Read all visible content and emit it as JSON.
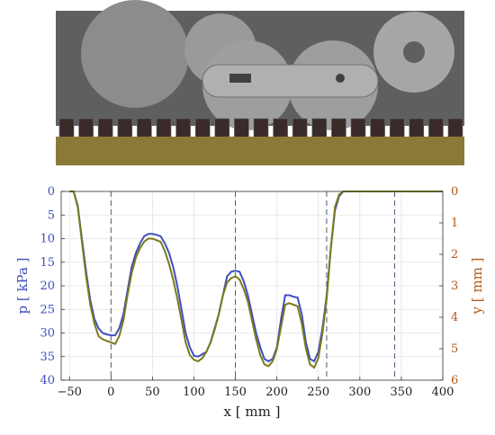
{
  "figure": {
    "scene_description_colors": {
      "background_dark": "#5f5f5f",
      "track_shoe": "#3b2a2a",
      "soil": "#8a7a3a",
      "wheel": "#9a9a9a",
      "arm": "#a8a8a8"
    }
  },
  "chart_data": {
    "type": "line",
    "x": [
      -50,
      -45,
      -40,
      -35,
      -30,
      -25,
      -20,
      -15,
      -10,
      -5,
      0,
      5,
      10,
      15,
      20,
      25,
      30,
      35,
      40,
      45,
      50,
      55,
      60,
      65,
      70,
      75,
      80,
      85,
      90,
      95,
      100,
      105,
      110,
      115,
      120,
      125,
      130,
      135,
      140,
      145,
      150,
      155,
      160,
      165,
      170,
      175,
      180,
      185,
      190,
      195,
      200,
      205,
      210,
      215,
      220,
      225,
      230,
      235,
      240,
      245,
      250,
      255,
      260,
      265,
      270,
      275,
      280,
      285,
      290,
      295,
      300,
      305,
      310,
      315,
      320,
      325,
      330,
      335,
      340,
      345,
      350,
      355,
      360,
      365,
      370,
      375,
      380,
      385,
      390,
      395,
      400
    ],
    "series": [
      {
        "name": "",
        "axis": "left",
        "color": "#3f4fbf",
        "values": [
          0,
          0,
          3,
          10,
          17,
          23,
          27,
          29,
          30,
          30.3,
          30.5,
          30.5,
          29,
          26,
          21,
          16,
          13,
          11,
          9.5,
          9,
          9,
          9.2,
          9.5,
          11,
          13,
          16,
          20,
          25,
          30,
          33,
          34.8,
          35,
          34.5,
          34,
          32,
          29,
          26,
          22,
          18,
          17,
          16.8,
          17,
          19,
          22,
          26,
          30,
          33,
          35.5,
          36,
          35.5,
          33,
          27,
          22,
          22,
          22.3,
          22.5,
          26,
          32,
          35.5,
          36,
          34,
          29,
          22,
          12,
          4,
          1,
          0,
          0,
          0,
          0,
          0,
          0,
          0,
          0,
          0,
          0,
          0,
          0,
          0,
          0,
          0,
          0,
          0,
          0,
          0,
          0,
          0,
          0,
          0,
          0,
          0
        ]
      },
      {
        "name": "",
        "axis": "right",
        "color": "#7a7a1a",
        "values": [
          0,
          0,
          0.5,
          1.6,
          2.7,
          3.6,
          4.2,
          4.6,
          4.7,
          4.75,
          4.8,
          4.85,
          4.6,
          4.1,
          3.3,
          2.6,
          2.1,
          1.8,
          1.6,
          1.5,
          1.5,
          1.55,
          1.6,
          1.9,
          2.3,
          2.8,
          3.4,
          4.1,
          4.8,
          5.2,
          5.35,
          5.4,
          5.3,
          5.1,
          4.8,
          4.4,
          3.9,
          3.3,
          2.9,
          2.75,
          2.7,
          2.8,
          3.1,
          3.5,
          4.1,
          4.7,
          5.2,
          5.5,
          5.55,
          5.4,
          5.0,
          4.3,
          3.6,
          3.55,
          3.6,
          3.65,
          4.2,
          5.0,
          5.5,
          5.6,
          5.3,
          4.5,
          3.4,
          1.8,
          0.5,
          0.1,
          0,
          0,
          0,
          0,
          0,
          0,
          0,
          0,
          0,
          0,
          0,
          0,
          0,
          0,
          0,
          0,
          0,
          0,
          0,
          0,
          0,
          0,
          0,
          0,
          0
        ]
      }
    ],
    "xlabel": "x [ mm ]",
    "ylabel_left": "p [ kPa ]",
    "ylabel_right": "y [ mm ]",
    "xlim": [
      -60,
      400
    ],
    "ylim_left": [
      0,
      40
    ],
    "ylim_right": [
      0,
      6
    ],
    "y_inverted": true,
    "xticks": [
      -50,
      0,
      50,
      100,
      150,
      200,
      250,
      300,
      350,
      400
    ],
    "yticks_left": [
      0,
      5,
      10,
      15,
      20,
      25,
      30,
      35,
      40
    ],
    "yticks_right": [
      0,
      1,
      2,
      3,
      4,
      5,
      6
    ],
    "vlines_dashed": [
      0,
      150,
      260,
      342
    ],
    "grid": true,
    "colors": {
      "left_axis": "#3f4fbf",
      "right_axis": "#b05a1a"
    }
  }
}
